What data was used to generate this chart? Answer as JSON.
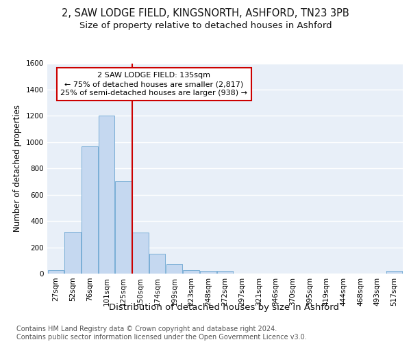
{
  "title_line1": "2, SAW LODGE FIELD, KINGSNORTH, ASHFORD, TN23 3PB",
  "title_line2": "Size of property relative to detached houses in Ashford",
  "xlabel": "Distribution of detached houses by size in Ashford",
  "ylabel": "Number of detached properties",
  "categories": [
    "27sqm",
    "52sqm",
    "76sqm",
    "101sqm",
    "125sqm",
    "150sqm",
    "174sqm",
    "199sqm",
    "223sqm",
    "248sqm",
    "272sqm",
    "297sqm",
    "321sqm",
    "346sqm",
    "370sqm",
    "395sqm",
    "419sqm",
    "444sqm",
    "468sqm",
    "493sqm",
    "517sqm"
  ],
  "values": [
    25,
    320,
    970,
    1200,
    700,
    310,
    150,
    75,
    25,
    20,
    20,
    0,
    0,
    0,
    0,
    0,
    0,
    0,
    0,
    0,
    20
  ],
  "bar_color": "#c5d8f0",
  "bar_edge_color": "#7aaed6",
  "bg_color": "#e8eff8",
  "grid_color": "#ffffff",
  "annotation_text_line1": "2 SAW LODGE FIELD: 135sqm",
  "annotation_text_line2": "← 75% of detached houses are smaller (2,817)",
  "annotation_text_line3": "25% of semi-detached houses are larger (938) →",
  "box_facecolor": "#ffffff",
  "box_edgecolor": "#cc0000",
  "red_line_bar_index": 4,
  "ylim": [
    0,
    1600
  ],
  "yticks": [
    0,
    200,
    400,
    600,
    800,
    1000,
    1200,
    1400,
    1600
  ],
  "title_fontsize": 10.5,
  "subtitle_fontsize": 9.5,
  "xlabel_fontsize": 9.5,
  "ylabel_fontsize": 8.5,
  "tick_fontsize": 7.5,
  "annot_fontsize": 8,
  "footer_fontsize": 7
}
